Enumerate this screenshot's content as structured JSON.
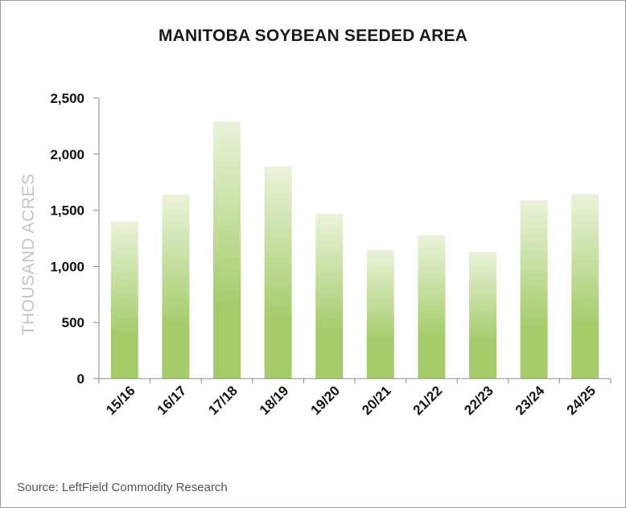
{
  "chart_data": {
    "type": "bar",
    "title": "MANITOBA SOYBEAN SEEDED AREA",
    "ylabel": "THOUSAND ACRES",
    "xlabel": "",
    "categories": [
      "15/16",
      "16/17",
      "17/18",
      "18/19",
      "19/20",
      "20/21",
      "21/22",
      "22/23",
      "23/24",
      "24/25"
    ],
    "values": [
      1400,
      1640,
      2290,
      1890,
      1470,
      1145,
      1280,
      1130,
      1590,
      1645
    ],
    "ylim": [
      0,
      2500
    ],
    "yticks": [
      0,
      500,
      1000,
      1500,
      2000,
      2500
    ],
    "ytick_labels": [
      "0",
      "500",
      "1,000",
      "1,500",
      "2,000",
      "2,500"
    ],
    "grid": false,
    "legend": "none",
    "colors": {
      "bar_top": "#eaf3da",
      "bar_bottom": "#a4cc6a",
      "axis": "#8a8a8a",
      "ylabel": "#c4c4c4"
    }
  },
  "source": "Source: LeftField Commodity Research"
}
